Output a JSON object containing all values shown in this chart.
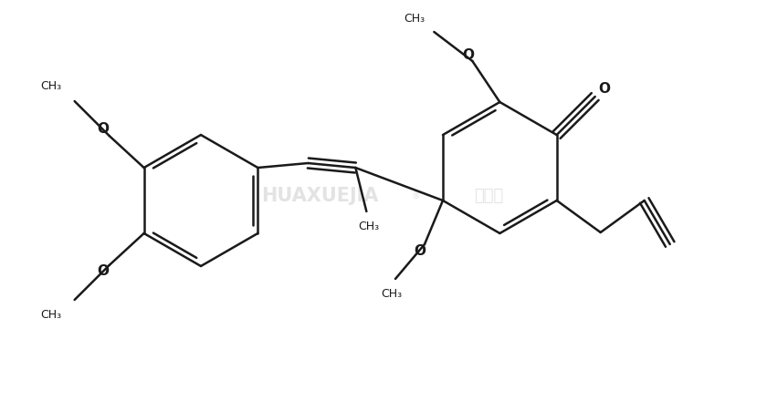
{
  "bg_color": "#ffffff",
  "line_color": "#1a1a1a",
  "line_width": 1.8,
  "fig_width": 8.4,
  "fig_height": 4.4,
  "dpi": 100,
  "xlim": [
    0,
    8.4
  ],
  "ylim": [
    0,
    4.4
  ]
}
